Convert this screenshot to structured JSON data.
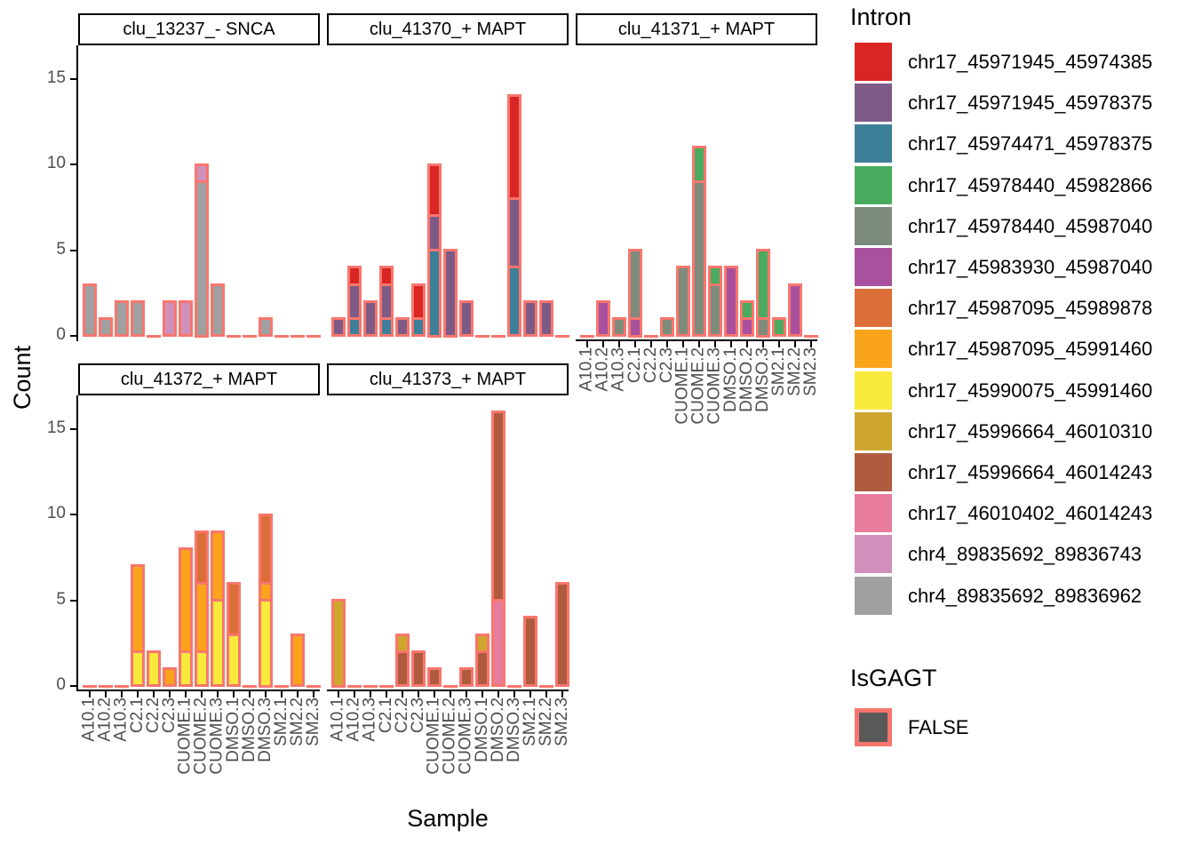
{
  "chart_data": {
    "type": "bar",
    "stacked": true,
    "grid": false,
    "legend_position": "right",
    "ylabel": "Count",
    "xlabel": "Sample",
    "y_ticks": [
      0,
      5,
      10,
      15
    ],
    "ylim": [
      0,
      17
    ],
    "categories": [
      "A10.1",
      "A10.2",
      "A10.3",
      "C2.1",
      "C2.2",
      "C2.3",
      "CUOME.1",
      "CUOME.2",
      "CUOME.3",
      "DMSO.1",
      "DMSO.2",
      "DMSO.3",
      "SM2.1",
      "SM2.2",
      "SM2.3"
    ],
    "legend": {
      "intron": {
        "title": "Intron",
        "entries": [
          {
            "label": "chr17_45971945_45974385",
            "color": "#D92523"
          },
          {
            "label": "chr17_45971945_45978375",
            "color": "#7D5B86"
          },
          {
            "label": "chr17_45974471_45978375",
            "color": "#3D7E99"
          },
          {
            "label": "chr17_45978440_45982866",
            "color": "#49AB5D"
          },
          {
            "label": "chr17_45978440_45987040",
            "color": "#7C8B7B"
          },
          {
            "label": "chr17_45983930_45987040",
            "color": "#A8519F"
          },
          {
            "label": "chr17_45987095_45989878",
            "color": "#DC6E38"
          },
          {
            "label": "chr17_45987095_45991460",
            "color": "#FAA41B"
          },
          {
            "label": "chr17_45990075_45991460",
            "color": "#F8E93B"
          },
          {
            "label": "chr17_45996664_46010310",
            "color": "#CFA62D"
          },
          {
            "label": "chr17_45996664_46014243",
            "color": "#AF5B3F"
          },
          {
            "label": "chr17_46010402_46014243",
            "color": "#E87C9C"
          },
          {
            "label": "chr4_89835692_89836743",
            "color": "#D190BC"
          },
          {
            "label": "chr4_89835692_89836962",
            "color": "#A1A0A0"
          }
        ]
      },
      "isgagt": {
        "title": "IsGAGT",
        "entries": [
          {
            "label": "FALSE",
            "fill": "#595959",
            "border": "#F8766D"
          }
        ]
      }
    },
    "bar_border_color": "#F8766D",
    "facets": [
      {
        "title": "clu_13237_- SNCA",
        "bars": [
          [
            {
              "intron": "chr4_89835692_89836962",
              "count": 3
            }
          ],
          [
            {
              "intron": "chr4_89835692_89836962",
              "count": 1
            }
          ],
          [
            {
              "intron": "chr4_89835692_89836962",
              "count": 2
            }
          ],
          [
            {
              "intron": "chr4_89835692_89836962",
              "count": 2
            }
          ],
          [],
          [
            {
              "intron": "chr4_89835692_89836743",
              "count": 2
            }
          ],
          [
            {
              "intron": "chr4_89835692_89836743",
              "count": 2
            }
          ],
          [
            {
              "intron": "chr4_89835692_89836962",
              "count": 9
            },
            {
              "intron": "chr4_89835692_89836743",
              "count": 1
            }
          ],
          [
            {
              "intron": "chr4_89835692_89836962",
              "count": 3
            }
          ],
          [],
          [],
          [
            {
              "intron": "chr4_89835692_89836962",
              "count": 1
            }
          ],
          [],
          [],
          []
        ]
      },
      {
        "title": "clu_41370_+ MAPT",
        "bars": [
          [
            {
              "intron": "chr17_45971945_45978375",
              "count": 1
            }
          ],
          [
            {
              "intron": "chr17_45974471_45978375",
              "count": 1
            },
            {
              "intron": "chr17_45971945_45978375",
              "count": 2
            },
            {
              "intron": "chr17_45971945_45974385",
              "count": 1
            }
          ],
          [
            {
              "intron": "chr17_45971945_45978375",
              "count": 2
            }
          ],
          [
            {
              "intron": "chr17_45974471_45978375",
              "count": 1
            },
            {
              "intron": "chr17_45971945_45978375",
              "count": 2
            },
            {
              "intron": "chr17_45971945_45974385",
              "count": 1
            }
          ],
          [
            {
              "intron": "chr17_45971945_45978375",
              "count": 1
            }
          ],
          [
            {
              "intron": "chr17_45974471_45978375",
              "count": 1
            },
            {
              "intron": "chr17_45971945_45974385",
              "count": 2
            }
          ],
          [
            {
              "intron": "chr17_45974471_45978375",
              "count": 5
            },
            {
              "intron": "chr17_45971945_45978375",
              "count": 2
            },
            {
              "intron": "chr17_45971945_45974385",
              "count": 3
            }
          ],
          [
            {
              "intron": "chr17_45971945_45978375",
              "count": 5
            }
          ],
          [
            {
              "intron": "chr17_45971945_45978375",
              "count": 2
            }
          ],
          [],
          [],
          [
            {
              "intron": "chr17_45974471_45978375",
              "count": 4
            },
            {
              "intron": "chr17_45971945_45978375",
              "count": 4
            },
            {
              "intron": "chr17_45971945_45974385",
              "count": 6
            }
          ],
          [
            {
              "intron": "chr17_45971945_45978375",
              "count": 2
            }
          ],
          [
            {
              "intron": "chr17_45971945_45978375",
              "count": 2
            }
          ],
          []
        ]
      },
      {
        "title": "clu_41371_+ MAPT",
        "bars": [
          [],
          [
            {
              "intron": "chr17_45983930_45987040",
              "count": 2
            }
          ],
          [
            {
              "intron": "chr17_45978440_45987040",
              "count": 1
            }
          ],
          [
            {
              "intron": "chr17_45983930_45987040",
              "count": 1
            },
            {
              "intron": "chr17_45978440_45987040",
              "count": 4
            }
          ],
          [],
          [
            {
              "intron": "chr17_45978440_45987040",
              "count": 1
            }
          ],
          [
            {
              "intron": "chr17_45978440_45987040",
              "count": 4
            }
          ],
          [
            {
              "intron": "chr17_45978440_45987040",
              "count": 9
            },
            {
              "intron": "chr17_45978440_45982866",
              "count": 2
            }
          ],
          [
            {
              "intron": "chr17_45978440_45987040",
              "count": 3
            },
            {
              "intron": "chr17_45978440_45982866",
              "count": 1
            }
          ],
          [
            {
              "intron": "chr17_45983930_45987040",
              "count": 4
            }
          ],
          [
            {
              "intron": "chr17_45983930_45987040",
              "count": 1
            },
            {
              "intron": "chr17_45978440_45982866",
              "count": 1
            }
          ],
          [
            {
              "intron": "chr17_45978440_45987040",
              "count": 1
            },
            {
              "intron": "chr17_45978440_45982866",
              "count": 4
            }
          ],
          [
            {
              "intron": "chr17_45978440_45982866",
              "count": 1
            }
          ],
          [
            {
              "intron": "chr17_45983930_45987040",
              "count": 3
            }
          ],
          []
        ]
      },
      {
        "title": "clu_41372_+ MAPT",
        "bars": [
          [],
          [],
          [],
          [
            {
              "intron": "chr17_45990075_45991460",
              "count": 2
            },
            {
              "intron": "chr17_45987095_45991460",
              "count": 5
            }
          ],
          [
            {
              "intron": "chr17_45990075_45991460",
              "count": 2
            }
          ],
          [
            {
              "intron": "chr17_45987095_45991460",
              "count": 1
            }
          ],
          [
            {
              "intron": "chr17_45990075_45991460",
              "count": 2
            },
            {
              "intron": "chr17_45987095_45991460",
              "count": 6
            }
          ],
          [
            {
              "intron": "chr17_45990075_45991460",
              "count": 2
            },
            {
              "intron": "chr17_45987095_45991460",
              "count": 4
            },
            {
              "intron": "chr17_45987095_45989878",
              "count": 3
            }
          ],
          [
            {
              "intron": "chr17_45990075_45991460",
              "count": 5
            },
            {
              "intron": "chr17_45987095_45991460",
              "count": 4
            }
          ],
          [
            {
              "intron": "chr17_45990075_45991460",
              "count": 3
            },
            {
              "intron": "chr17_45987095_45989878",
              "count": 3
            }
          ],
          [],
          [
            {
              "intron": "chr17_45990075_45991460",
              "count": 5
            },
            {
              "intron": "chr17_45987095_45991460",
              "count": 1
            },
            {
              "intron": "chr17_45987095_45989878",
              "count": 4
            }
          ],
          [],
          [
            {
              "intron": "chr17_45987095_45991460",
              "count": 3
            }
          ],
          []
        ]
      },
      {
        "title": "clu_41373_+ MAPT",
        "bars": [
          [
            {
              "intron": "chr17_45996664_46010310",
              "count": 5
            }
          ],
          [],
          [],
          [],
          [
            {
              "intron": "chr17_45996664_46014243",
              "count": 2
            },
            {
              "intron": "chr17_45996664_46010310",
              "count": 1
            }
          ],
          [
            {
              "intron": "chr17_45996664_46014243",
              "count": 2
            }
          ],
          [
            {
              "intron": "chr17_45996664_46014243",
              "count": 1
            }
          ],
          [],
          [
            {
              "intron": "chr17_45996664_46014243",
              "count": 1
            }
          ],
          [
            {
              "intron": "chr17_45996664_46014243",
              "count": 2
            },
            {
              "intron": "chr17_45996664_46010310",
              "count": 1
            }
          ],
          [
            {
              "intron": "chr17_46010402_46014243",
              "count": 5
            },
            {
              "intron": "chr17_45996664_46014243",
              "count": 11
            }
          ],
          [],
          [
            {
              "intron": "chr17_45996664_46014243",
              "count": 4
            }
          ],
          [],
          [
            {
              "intron": "chr17_45996664_46014243",
              "count": 6
            }
          ]
        ]
      }
    ]
  },
  "style_colors": {
    "axis_text": "#4D4D4D",
    "axis_line": "#000000",
    "strip_border": "#000000"
  }
}
